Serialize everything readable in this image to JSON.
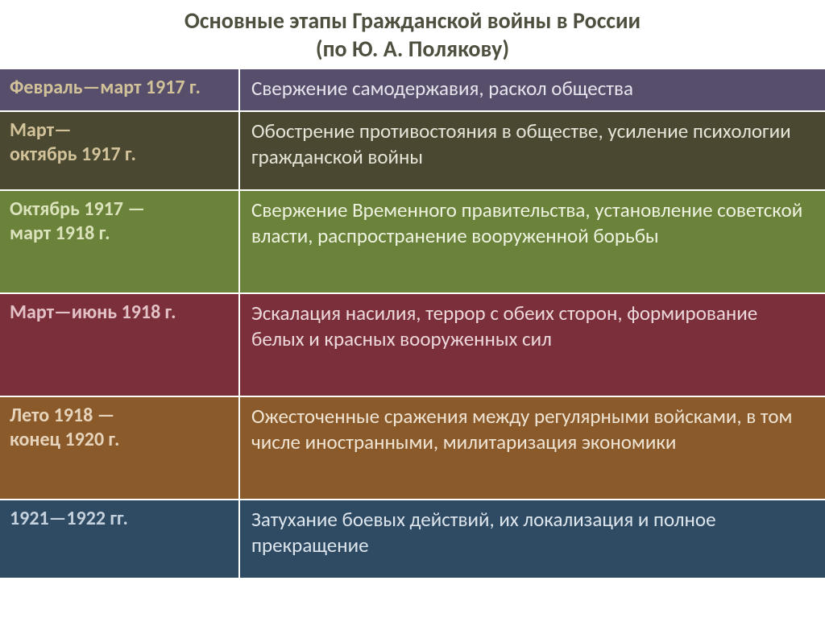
{
  "title_line1": "Основные этапы Гражданской войны в России",
  "title_line2": "(по Ю. А. Полякову)",
  "title_color": "#4f4f3f",
  "rows": [
    {
      "period": "Февраль—март 1917 г.",
      "desc": "Свержение самодержавия,   раскол   общества",
      "bg": "#564e6a",
      "left_text_color": "#d2c29a",
      "right_text_color": "#e8e4ee",
      "height": 52
    },
    {
      "period": "Март—\nоктябрь 1917 г.",
      "desc": "Обострение противостояния в обществе, усиление психологии гражданской войны",
      "bg": "#4b4831",
      "left_text_color": "#d2c29a",
      "right_text_color": "#e6e4d8",
      "height": 98
    },
    {
      "period": "Октябрь 1917 —\nмарт 1918 г.",
      "desc": "Свержение Временного правительства, установление советской власти, распространение вооруженной   борьбы",
      "bg": "#6b823a",
      "left_text_color": "#dbe3bc",
      "right_text_color": "#eef2e0",
      "height": 128
    },
    {
      "period": "Март—июнь 1918 г.",
      "desc": "Эскалация насилия, террор с обеих сторон, формирование белых и красных вооруженных сил",
      "bg": "#7b2f3a",
      "left_text_color": "#e2c2c7",
      "right_text_color": "#ecd8db",
      "height": 128
    },
    {
      "period": "Лето 1918 —\nконец 1920 г.",
      "desc": "Ожесточенные сражения между регулярными войсками, в том числе иностранными, милитаризация экономики",
      "bg": "#8a5a2a",
      "left_text_color": "#e6d5bc",
      "right_text_color": "#efe4d4",
      "height": 128
    },
    {
      "period": "1921—1922 гг.",
      "desc": "Затухание боевых действий, их локализация и полное   прекращение",
      "bg": "#2f4a63",
      "left_text_color": "#c5d2de",
      "right_text_color": "#dde5ec",
      "height": 98
    }
  ]
}
